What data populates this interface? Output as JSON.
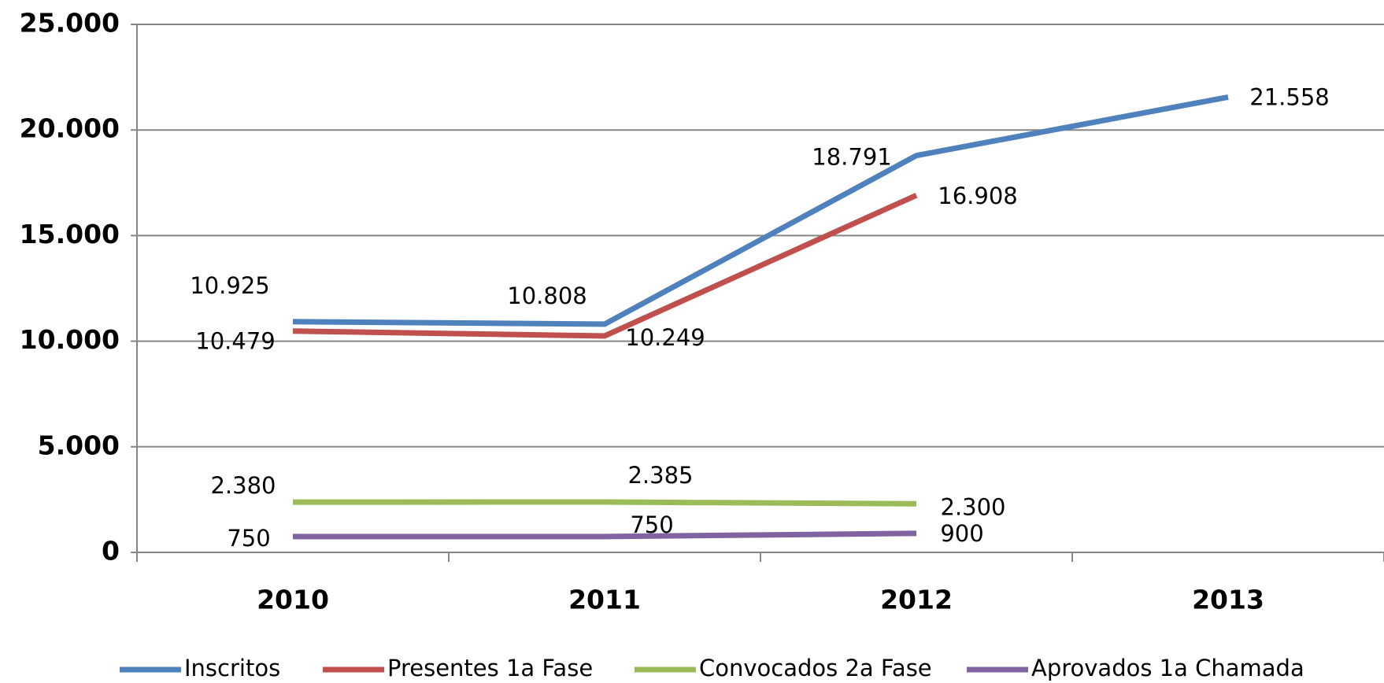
{
  "chart_data": {
    "type": "line",
    "categories": [
      "2010",
      "2011",
      "2012",
      "2013"
    ],
    "series": [
      {
        "name": "Inscritos",
        "color": "#4f81bd",
        "values": [
          10925,
          10808,
          18791,
          21558
        ],
        "value_labels": [
          "10.925",
          "10.808",
          "18.791",
          "21.558"
        ]
      },
      {
        "name": "Presentes 1a Fase",
        "color": "#c0504d",
        "values": [
          10479,
          10249,
          16908,
          null
        ],
        "value_labels": [
          "10.479",
          "10.249",
          "16.908",
          null
        ]
      },
      {
        "name": "Convocados 2a Fase",
        "color": "#9bbb59",
        "values": [
          2380,
          2385,
          2300,
          null
        ],
        "value_labels": [
          "2.380",
          "2.385",
          "2.300",
          null
        ]
      },
      {
        "name": "Aprovados 1a Chamada",
        "color": "#8064a2",
        "values": [
          750,
          750,
          900,
          null
        ],
        "value_labels": [
          "750",
          "750",
          "900",
          null
        ]
      }
    ],
    "ylim": [
      0,
      25000
    ],
    "yticks": [
      0,
      {
        "value": 5000,
        "label": "5.000"
      },
      {
        "value": 10000,
        "label": "10.000"
      },
      {
        "value": 15000,
        "label": "15.000"
      },
      {
        "value": 20000,
        "label": "20.000"
      },
      {
        "value": 25000,
        "label": "25.000"
      }
    ],
    "grid": true,
    "legend": "bottom"
  }
}
